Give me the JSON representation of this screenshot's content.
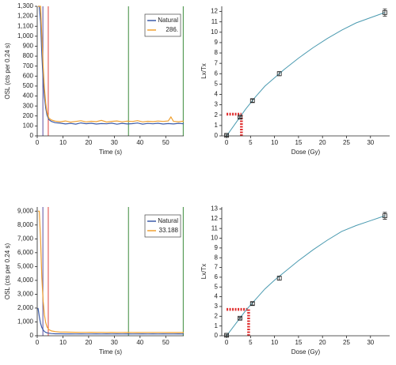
{
  "chart_data": [
    {
      "type": "line",
      "xlabel": "Time (s)",
      "ylabel": "OSL (cts per 0.24 s)",
      "xlim": [
        0,
        57
      ],
      "xticks": [
        0,
        10,
        20,
        30,
        40,
        50
      ],
      "ylim": [
        0,
        1300
      ],
      "yticks": [
        0,
        100,
        200,
        300,
        400,
        500,
        600,
        700,
        800,
        900,
        {
          "value": 1000,
          "label": "1,000"
        },
        {
          "value": 1100,
          "label": "1,100"
        },
        {
          "value": 1200,
          "label": "1,200"
        },
        {
          "value": 1300,
          "label": "1,300"
        }
      ],
      "legend": "upper right",
      "markers": [
        {
          "x": 2.2,
          "color": "#5b4ea0"
        },
        {
          "x": 4.3,
          "color": "#e0403a"
        },
        {
          "x": 35.5,
          "color": "#3a8a3a"
        },
        {
          "x": 56.8,
          "color": "#3a8a3a"
        }
      ],
      "x": [
        0.3,
        0.8,
        1.3,
        1.8,
        2.3,
        2.8,
        3.3,
        3.8,
        4.5,
        5.5,
        7,
        9,
        11,
        13,
        15,
        17,
        19,
        21,
        23,
        25,
        27,
        29,
        31,
        33,
        35,
        37,
        39,
        41,
        43,
        45,
        47,
        49,
        51,
        52,
        53,
        55,
        57
      ],
      "series": [
        {
          "name": "Natural",
          "color": "#3b5ba8",
          "values": [
            1300,
            1300,
            1150,
            820,
            560,
            390,
            280,
            210,
            165,
            145,
            132,
            128,
            120,
            125,
            118,
            130,
            122,
            127,
            119,
            124,
            121,
            128,
            117,
            126,
            120,
            123,
            129,
            118,
            125,
            121,
            127,
            119,
            124,
            122,
            120,
            126,
            121
          ]
        },
        {
          "name": "286.",
          "color": "#f0a030",
          "values": [
            1300,
            1300,
            1300,
            1000,
            700,
            480,
            330,
            240,
            180,
            160,
            148,
            142,
            150,
            138,
            145,
            152,
            140,
            147,
            143,
            155,
            139,
            146,
            150,
            141,
            148,
            144,
            153,
            140,
            147,
            143,
            149,
            145,
            150,
            190,
            146,
            142,
            148
          ]
        }
      ]
    },
    {
      "type": "scatter",
      "xlabel": "Dose (Gy)",
      "ylabel": "Lx/Tx",
      "xlim": [
        -1,
        34
      ],
      "xticks": [
        0,
        5,
        10,
        15,
        20,
        25,
        30
      ],
      "ylim": [
        0,
        12.5
      ],
      "yticks": [
        0,
        1,
        2,
        3,
        4,
        5,
        6,
        7,
        8,
        9,
        10,
        11,
        12
      ],
      "x": [
        0,
        2.8,
        5.4,
        11,
        33
      ],
      "values": [
        0.05,
        1.8,
        3.4,
        6.0,
        11.9
      ],
      "errors": [
        0.1,
        0.1,
        0.15,
        0.2,
        0.35
      ],
      "color": "#222222",
      "fit": {
        "color": "#4a9ab0",
        "x": [
          0,
          2,
          4,
          6,
          8,
          10,
          12,
          15,
          18,
          21,
          24,
          27,
          30,
          33
        ],
        "values": [
          0,
          1.3,
          2.6,
          3.75,
          4.8,
          5.6,
          6.4,
          7.5,
          8.5,
          9.4,
          10.2,
          10.9,
          11.4,
          11.9
        ]
      },
      "interpolation": {
        "x": 3.1,
        "y": 2.1,
        "color": "#e03030"
      }
    },
    {
      "type": "line",
      "xlabel": "Time (s)",
      "ylabel": "OSL (cts per 0.24 s)",
      "xlim": [
        0,
        57
      ],
      "xticks": [
        0,
        10,
        20,
        30,
        40,
        50
      ],
      "ylim": [
        0,
        9300
      ],
      "yticks": [
        0,
        {
          "value": 1000,
          "label": "1,000"
        },
        {
          "value": 2000,
          "label": "2,000"
        },
        {
          "value": 3000,
          "label": "3,000"
        },
        {
          "value": 4000,
          "label": "4,000"
        },
        {
          "value": 5000,
          "label": "5,000"
        },
        {
          "value": 6000,
          "label": "6,000"
        },
        {
          "value": 7000,
          "label": "7,000"
        },
        {
          "value": 8000,
          "label": "8,000"
        },
        {
          "value": 9000,
          "label": "9,000"
        }
      ],
      "legend": "upper right",
      "markers": [
        {
          "x": 2.2,
          "color": "#5b4ea0"
        },
        {
          "x": 4.3,
          "color": "#e0403a"
        },
        {
          "x": 35.5,
          "color": "#3a8a3a"
        },
        {
          "x": 56.8,
          "color": "#3a8a3a"
        }
      ],
      "x": [
        0.3,
        0.8,
        1.3,
        1.8,
        2.3,
        2.8,
        3.3,
        3.8,
        4.5,
        5.5,
        7,
        9,
        11,
        13,
        15,
        17,
        19,
        21,
        23,
        25,
        27,
        29,
        31,
        33,
        35,
        37,
        39,
        41,
        43,
        45,
        47,
        49,
        51,
        52,
        53,
        55,
        57
      ],
      "series": [
        {
          "name": "Natural",
          "color": "#3b5ba8",
          "values": [
            2000,
            1400,
            900,
            600,
            420,
            310,
            250,
            210,
            180,
            160,
            145,
            140,
            135,
            138,
            132,
            136,
            130,
            134,
            137,
            131,
            135,
            133,
            138,
            130,
            136,
            132,
            134,
            137,
            131,
            135,
            133,
            136,
            130,
            134,
            132,
            135,
            133
          ]
        },
        {
          "name": "33.188",
          "color": "#f0a030",
          "values": [
            9000,
            9000,
            7000,
            4200,
            2500,
            1500,
            950,
            650,
            450,
            350,
            300,
            270,
            260,
            255,
            250,
            248,
            245,
            250,
            243,
            247,
            240,
            245,
            242,
            238,
            244,
            240,
            236,
            242,
            238,
            241,
            237,
            240,
            235,
            239,
            236,
            238,
            235
          ]
        }
      ]
    },
    {
      "type": "scatter",
      "xlabel": "Dose (Gy)",
      "ylabel": "Lx/Tx",
      "xlim": [
        -1,
        34
      ],
      "xticks": [
        0,
        5,
        10,
        15,
        20,
        25,
        30
      ],
      "ylim": [
        0,
        13.2
      ],
      "yticks": [
        0,
        1,
        2,
        3,
        4,
        5,
        6,
        7,
        8,
        9,
        10,
        11,
        12,
        13
      ],
      "x": [
        0,
        2.8,
        5.4,
        11,
        33
      ],
      "values": [
        0.05,
        1.8,
        3.3,
        5.9,
        12.3
      ],
      "errors": [
        0.1,
        0.1,
        0.15,
        0.2,
        0.35
      ],
      "color": "#222222",
      "fit": {
        "color": "#4a9ab0",
        "x": [
          0,
          2,
          4,
          6,
          8,
          10,
          12,
          15,
          18,
          21,
          24,
          27,
          30,
          33
        ],
        "values": [
          0,
          1.3,
          2.6,
          3.7,
          4.8,
          5.7,
          6.5,
          7.7,
          8.8,
          9.8,
          10.7,
          11.3,
          11.8,
          12.3
        ]
      },
      "interpolation": {
        "x": 4.6,
        "y": 2.7,
        "color": "#e03030"
      }
    }
  ]
}
